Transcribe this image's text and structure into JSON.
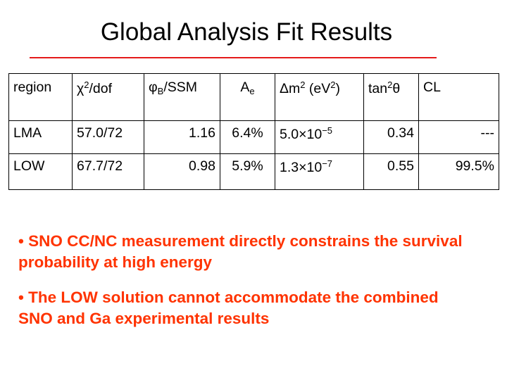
{
  "title": "Global Analysis Fit Results",
  "table": {
    "header": [
      [
        "region"
      ],
      [
        "χ",
        "2",
        "/dof"
      ],
      [
        "φ",
        "B",
        "/SSM"
      ],
      [
        "A",
        "e"
      ],
      [
        "Δm",
        "2",
        " (eV",
        "2",
        ")"
      ],
      [
        "tan",
        "2",
        "θ"
      ],
      [
        "CL"
      ]
    ],
    "rows": [
      [
        "LMA",
        "57.0/72",
        "1.16",
        "6.4%",
        [
          "5.0×10",
          "−5"
        ],
        "0.34",
        "---"
      ],
      [
        "LOW",
        "67.7/72",
        "0.98",
        "5.9%",
        [
          "1.3×10",
          "−7"
        ],
        "0.55",
        "99.5%"
      ]
    ]
  },
  "bullets": [
    "• SNO CC/NC measurement directly constrains the survival probability at high energy",
    "• The LOW solution cannot accommodate the combined SNO and Ga experimental results"
  ]
}
